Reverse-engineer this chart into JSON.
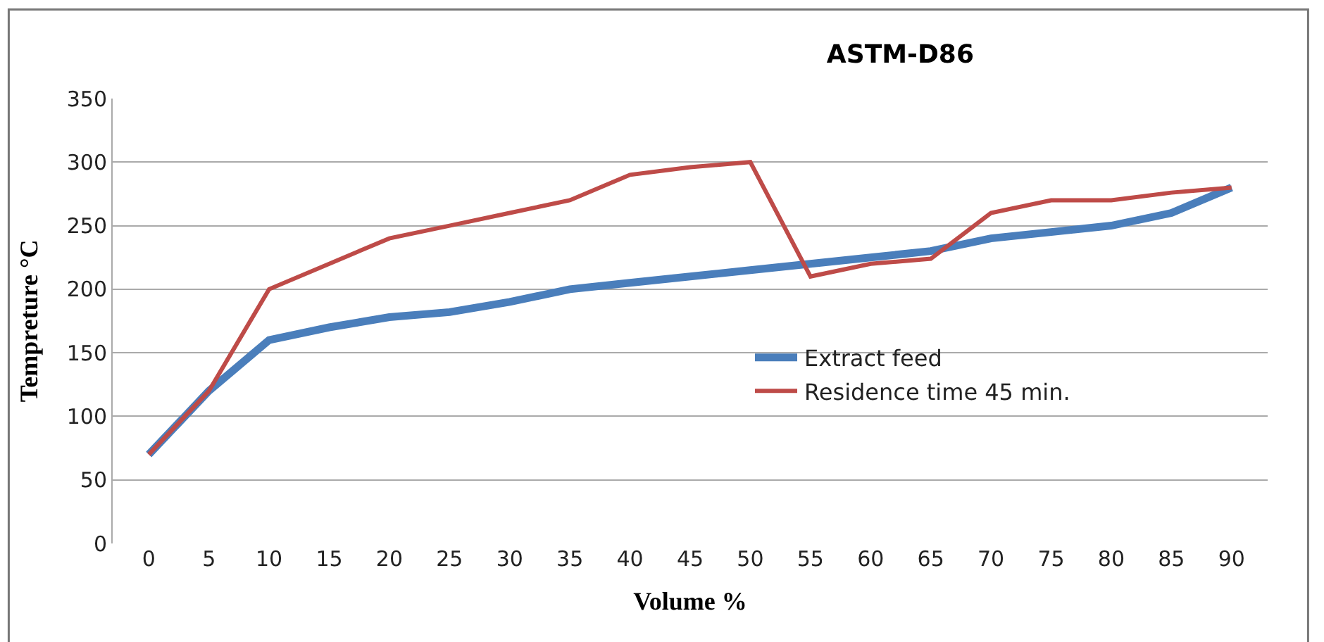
{
  "chart_data": {
    "type": "line",
    "title": "ASTM-D86",
    "xlabel": "Volume %",
    "ylabel": "Tempreture °C",
    "categories": [
      "0",
      "5",
      "10",
      "15",
      "20",
      "25",
      "30",
      "35",
      "40",
      "45",
      "50",
      "55",
      "60",
      "65",
      "70",
      "75",
      "80",
      "85",
      "90"
    ],
    "series": [
      {
        "name": "Extract feed",
        "color": "#4a7ebb",
        "values": [
          70,
          120,
          160,
          170,
          178,
          182,
          190,
          200,
          205,
          210,
          215,
          220,
          225,
          230,
          240,
          245,
          250,
          260,
          280
        ]
      },
      {
        "name": "Residence time 45 min.",
        "color": "#be4b48",
        "values": [
          70,
          120,
          200,
          220,
          240,
          250,
          260,
          270,
          290,
          296,
          300,
          210,
          220,
          224,
          260,
          270,
          270,
          276,
          280
        ]
      }
    ],
    "ylim": [
      0,
      350
    ],
    "yticks": [
      0,
      50,
      100,
      150,
      200,
      250,
      300,
      350
    ],
    "grid": "y",
    "legend": "right",
    "marker": "none",
    "line_style": "solid"
  }
}
